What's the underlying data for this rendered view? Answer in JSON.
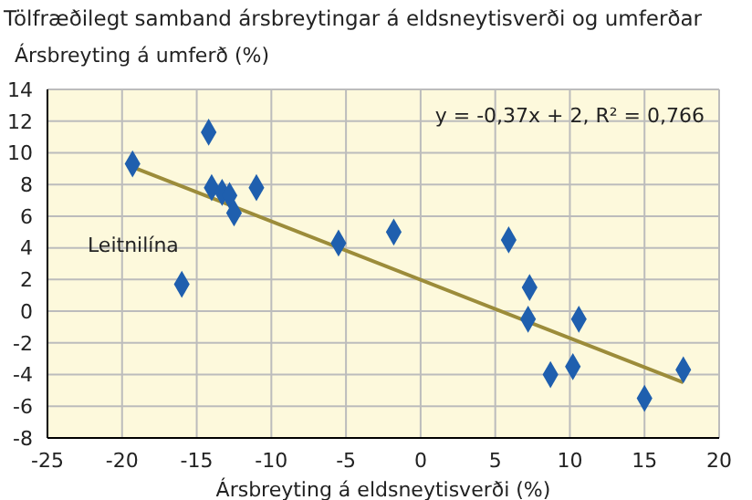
{
  "chart_data": {
    "type": "scatter",
    "title": "Tölfræðilegt samband ársbreytingar á eldsneytisverði og umferðar",
    "xlabel": "Ársbreyting á eldsneytisverði (%)",
    "ylabel": "Ársbreyting á umferð (%)",
    "series": [
      {
        "color": "#1f5fae",
        "marker": "diamond",
        "x": [
          -19.3,
          -14.2,
          -16,
          -14,
          -13.3,
          -12.8,
          -12.5,
          -11,
          -5.5,
          -1.8,
          5.9,
          7.3,
          7.2,
          10.6,
          8.7,
          10.2,
          15,
          17.6
        ],
        "values": [
          9.3,
          11.3,
          1.7,
          7.8,
          7.5,
          7.3,
          6.2,
          7.8,
          4.3,
          5,
          4.5,
          1.5,
          -0.5,
          -0.5,
          -4,
          -3.5,
          -5.5,
          -3.7
        ]
      },
      {
        "type": "line",
        "name": "Leitnilína",
        "color": "#9c8c3a",
        "marker": "none",
        "x": [
          -19.3,
          17.6
        ],
        "values": [
          9.1,
          -4.5
        ]
      }
    ],
    "annotations": [
      "y = -0,37x + 2, R² = 0,766"
    ],
    "xlim": [
      -25,
      20
    ],
    "xticks": [
      -25,
      -20,
      -15,
      -10,
      -5,
      0,
      5,
      10,
      15,
      20
    ],
    "ylim": [
      -8,
      14
    ],
    "yticks": [
      -8,
      -6,
      -4,
      -2,
      0,
      2,
      4,
      6,
      8,
      10,
      12,
      14
    ],
    "grid": true
  }
}
